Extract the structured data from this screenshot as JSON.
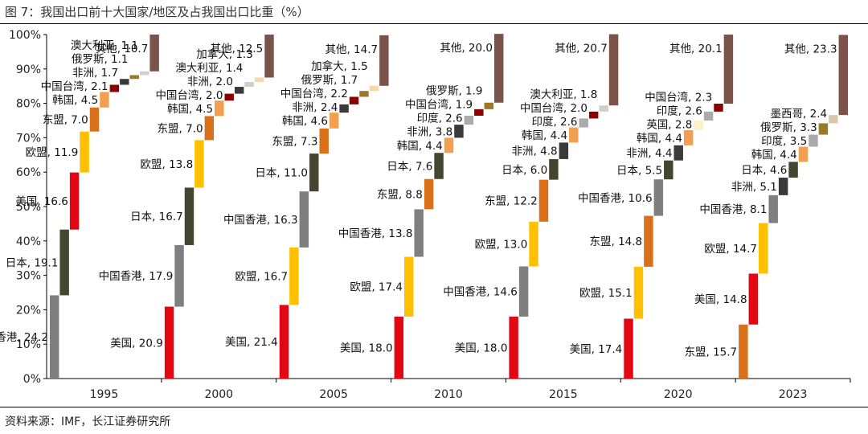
{
  "title": "图 7：我国出口前十大国家/地区及占我国出口比重（%）",
  "source": "资料来源：IMF，长江证券研究所",
  "chart_data": {
    "type": "bar",
    "subtype": "waterfall-stacked",
    "ylim": [
      0,
      100
    ],
    "yticks": [
      "0%",
      "10%",
      "20%",
      "30%",
      "40%",
      "50%",
      "60%",
      "70%",
      "80%",
      "90%",
      "100%"
    ],
    "grid": false,
    "legend": "none",
    "colors": {
      "中国香港": "#7f7f7f",
      "日本": "#454530",
      "美国": "#e30613",
      "欧盟": "#ffc000",
      "东盟": "#d9711b",
      "韩国": "#f0a050",
      "中国台湾": "#8b0000",
      "非洲": "#3a3a3a",
      "俄罗斯": "#9a7a28",
      "澳大利亚": "#cfcfcf",
      "加拿大": "#f8d8a8",
      "印度": "#aaaaaa",
      "英国": "#fff0c8",
      "墨西哥": "#d8c8a8",
      "其他": "#7b5348"
    },
    "years": [
      {
        "year": "1995",
        "segments": [
          {
            "name": "中国香港",
            "value": 24.2
          },
          {
            "name": "日本",
            "value": 19.1
          },
          {
            "name": "美国",
            "value": 16.6
          },
          {
            "name": "欧盟",
            "value": 11.9
          },
          {
            "name": "东盟",
            "value": 7.0
          },
          {
            "name": "韩国",
            "value": 4.5
          },
          {
            "name": "中国台湾",
            "value": 2.1
          },
          {
            "name": "非洲",
            "value": 1.7
          },
          {
            "name": "俄罗斯",
            "value": 1.1
          },
          {
            "name": "澳大利亚",
            "value": 1.1
          },
          {
            "name": "其他",
            "value": 10.7
          }
        ]
      },
      {
        "year": "2000",
        "segments": [
          {
            "name": "美国",
            "value": 20.9
          },
          {
            "name": "中国香港",
            "value": 17.9
          },
          {
            "name": "日本",
            "value": 16.7
          },
          {
            "name": "欧盟",
            "value": 13.8
          },
          {
            "name": "东盟",
            "value": 7.0
          },
          {
            "name": "韩国",
            "value": 4.5
          },
          {
            "name": "中国台湾",
            "value": 2.0
          },
          {
            "name": "非洲",
            "value": 2.0
          },
          {
            "name": "澳大利亚",
            "value": 1.4
          },
          {
            "name": "加拿大",
            "value": 1.3
          },
          {
            "name": "其他",
            "value": 12.5
          }
        ]
      },
      {
        "year": "2005",
        "segments": [
          {
            "name": "美国",
            "value": 21.4
          },
          {
            "name": "欧盟",
            "value": 16.7
          },
          {
            "name": "中国香港",
            "value": 16.3
          },
          {
            "name": "日本",
            "value": 11.0
          },
          {
            "name": "东盟",
            "value": 7.3
          },
          {
            "name": "韩国",
            "value": 4.6
          },
          {
            "name": "非洲",
            "value": 2.4
          },
          {
            "name": "中国台湾",
            "value": 2.2
          },
          {
            "name": "俄罗斯",
            "value": 1.7
          },
          {
            "name": "加拿大",
            "value": 1.5
          },
          {
            "name": "其他",
            "value": 14.7
          }
        ]
      },
      {
        "year": "2010",
        "segments": [
          {
            "name": "美国",
            "value": 18.0
          },
          {
            "name": "欧盟",
            "value": 17.4
          },
          {
            "name": "中国香港",
            "value": 13.8
          },
          {
            "name": "东盟",
            "value": 8.8
          },
          {
            "name": "日本",
            "value": 7.6
          },
          {
            "name": "韩国",
            "value": 4.4
          },
          {
            "name": "非洲",
            "value": 3.8
          },
          {
            "name": "印度",
            "value": 2.6
          },
          {
            "name": "中国台湾",
            "value": 1.9
          },
          {
            "name": "俄罗斯",
            "value": 1.9
          },
          {
            "name": "其他",
            "value": 20.0
          }
        ]
      },
      {
        "year": "2015",
        "segments": [
          {
            "name": "美国",
            "value": 18.0
          },
          {
            "name": "中国香港",
            "value": 14.6
          },
          {
            "name": "欧盟",
            "value": 13.0
          },
          {
            "name": "东盟",
            "value": 12.2
          },
          {
            "name": "日本",
            "value": 6.0
          },
          {
            "name": "非洲",
            "value": 4.8
          },
          {
            "name": "韩国",
            "value": 4.4
          },
          {
            "name": "印度",
            "value": 2.6
          },
          {
            "name": "中国台湾",
            "value": 2.0
          },
          {
            "name": "澳大利亚",
            "value": 1.8
          },
          {
            "name": "其他",
            "value": 20.7
          }
        ]
      },
      {
        "year": "2020",
        "segments": [
          {
            "name": "美国",
            "value": 17.4
          },
          {
            "name": "欧盟",
            "value": 15.1
          },
          {
            "name": "东盟",
            "value": 14.8
          },
          {
            "name": "中国香港",
            "value": 10.6
          },
          {
            "name": "日本",
            "value": 5.5
          },
          {
            "name": "非洲",
            "value": 4.4
          },
          {
            "name": "韩国",
            "value": 4.4
          },
          {
            "name": "英国",
            "value": 2.8
          },
          {
            "name": "印度",
            "value": 2.6
          },
          {
            "name": "中国台湾",
            "value": 2.3
          },
          {
            "name": "其他",
            "value": 20.1
          }
        ]
      },
      {
        "year": "2023",
        "segments": [
          {
            "name": "东盟",
            "value": 15.7
          },
          {
            "name": "美国",
            "value": 14.8
          },
          {
            "name": "欧盟",
            "value": 14.7
          },
          {
            "name": "中国香港",
            "value": 8.1
          },
          {
            "name": "非洲",
            "value": 5.1
          },
          {
            "name": "日本",
            "value": 4.6
          },
          {
            "name": "韩国",
            "value": 4.4
          },
          {
            "name": "印度",
            "value": 3.5
          },
          {
            "name": "俄罗斯",
            "value": 3.3
          },
          {
            "name": "墨西哥",
            "value": 2.4
          },
          {
            "name": "其他",
            "value": 23.3
          }
        ]
      }
    ]
  }
}
